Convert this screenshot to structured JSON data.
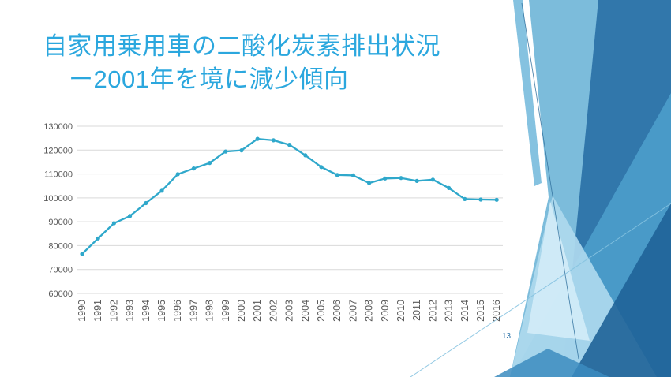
{
  "slide": {
    "title_line1": "自家用乗用車の二酸化炭素排出状況",
    "title_line2": "ー2001年を境に減少傾向",
    "page_number": "13"
  },
  "colors": {
    "title_text": "#2BA7DE",
    "chart_line": "#2FA8CB",
    "axis_text": "#595959",
    "gridline": "#D9D9D9",
    "page_number": "#2E74A9",
    "decor_pale": "#D3ECF8",
    "decor_light": "#AED9EE",
    "decor_soft": "#7CBCDB",
    "decor_medium": "#4D9DCB",
    "decor_dark": "#2E74A9",
    "decor_darkest": "#1F6398"
  },
  "chart_data": {
    "type": "line",
    "title": "",
    "xlabel": "",
    "ylabel": "",
    "categories": [
      "1990",
      "1991",
      "1992",
      "1993",
      "1994",
      "1995",
      "1996",
      "1997",
      "1998",
      "1999",
      "2000",
      "2001",
      "2002",
      "2003",
      "2004",
      "2005",
      "2006",
      "2007",
      "2008",
      "2009",
      "2010",
      "2011",
      "2012",
      "2013",
      "2014",
      "2015",
      "2016"
    ],
    "values": [
      76500,
      83000,
      89400,
      92400,
      97800,
      103000,
      109900,
      112300,
      114600,
      119400,
      119900,
      124700,
      124100,
      122200,
      117800,
      112900,
      109600,
      109400,
      106200,
      108100,
      108300,
      107100,
      107600,
      104100,
      99500,
      99300,
      99200
    ],
    "ylim": [
      60000,
      130000
    ],
    "yticks": [
      60000,
      70000,
      80000,
      90000,
      100000,
      110000,
      120000,
      130000
    ],
    "grid": true,
    "legend_position": "none",
    "marker": "circle"
  }
}
